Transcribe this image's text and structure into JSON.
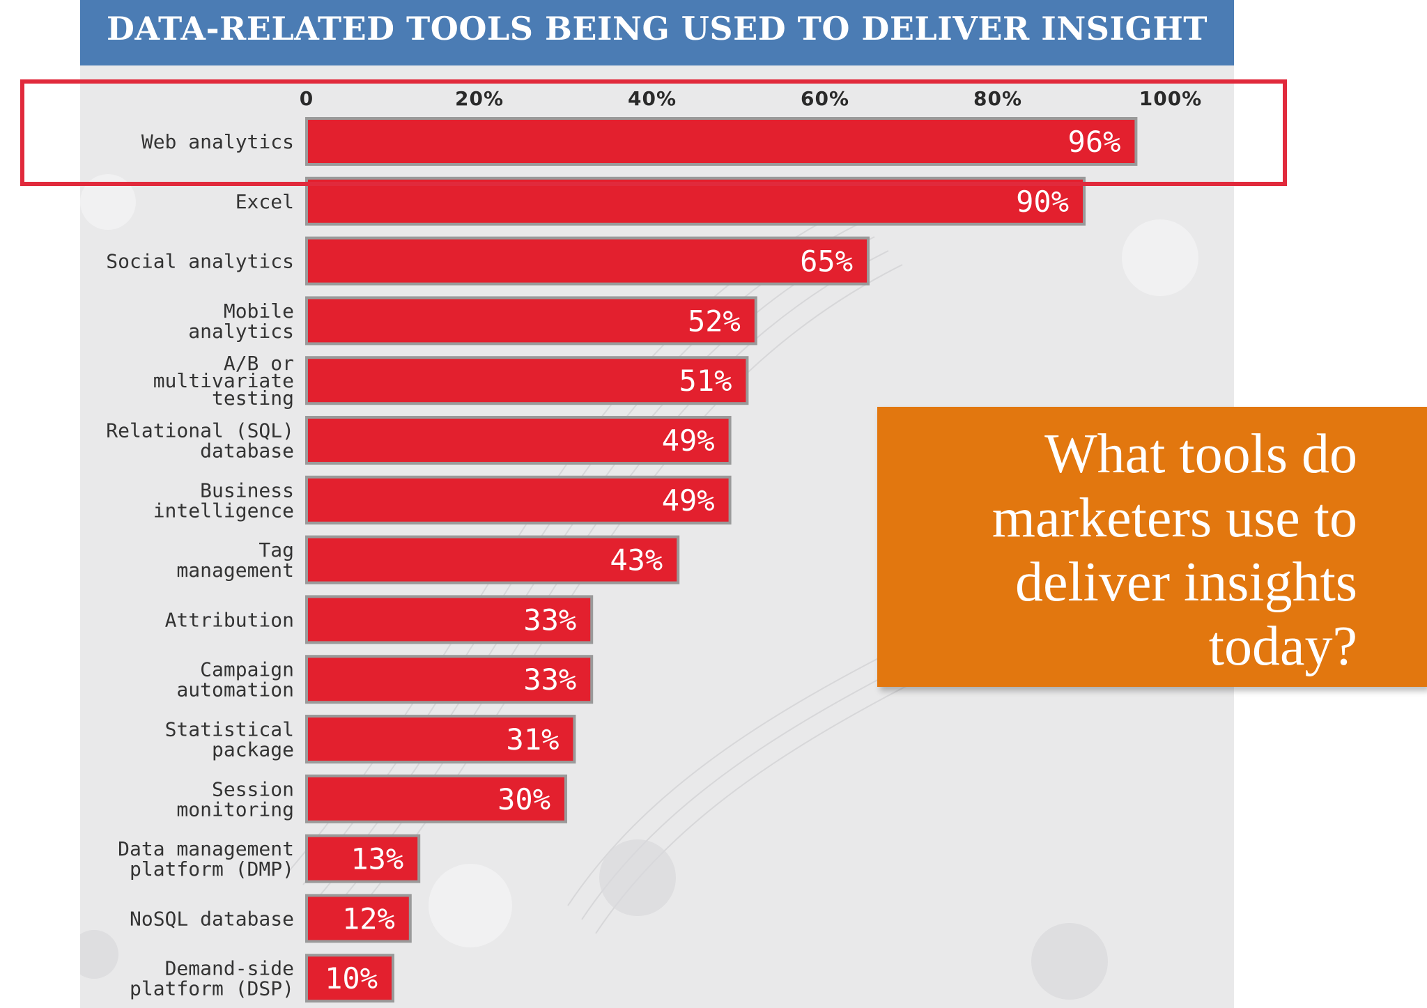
{
  "colors": {
    "header": "#4b7cb4",
    "bar": "#e3202e",
    "bar_border": "#9a9a9a",
    "highlight_box": "#e12a3c",
    "callout": "#e2770f",
    "panel": "#e9e9ea"
  },
  "callout": {
    "text": "What tools do marketers use to deliver insights today?"
  },
  "chart_data": {
    "type": "bar",
    "orientation": "horizontal",
    "title": "DATA-RELATED TOOLS BEING USED TO DELIVER INSIGHT",
    "xlim": [
      0,
      100
    ],
    "x_ticks": [
      "0",
      "20%",
      "40%",
      "60%",
      "80%",
      "100%"
    ],
    "x_tick_values": [
      0,
      20,
      40,
      60,
      80,
      100
    ],
    "x_axis_position": "top",
    "grid": false,
    "highlighted_category": "Web analytics",
    "categories": [
      "Web analytics",
      "Excel",
      "Social analytics",
      "Mobile analytics",
      "A/B or multivariate testing",
      "Relational (SQL) database",
      "Business intelligence",
      "Tag management",
      "Attribution",
      "Campaign automation",
      "Statistical package",
      "Session monitoring",
      "Data management platform (DMP)",
      "NoSQL database",
      "Demand-side platform (DSP)"
    ],
    "category_label_lines": [
      [
        "Web analytics"
      ],
      [
        "Excel"
      ],
      [
        "Social analytics"
      ],
      [
        "Mobile",
        "analytics"
      ],
      [
        "A/B or",
        "multivariate",
        "testing"
      ],
      [
        "Relational (SQL)",
        "database"
      ],
      [
        "Business",
        "intelligence"
      ],
      [
        "Tag",
        "management"
      ],
      [
        "Attribution"
      ],
      [
        "Campaign",
        "automation"
      ],
      [
        "Statistical",
        "package"
      ],
      [
        "Session",
        "monitoring"
      ],
      [
        "Data management",
        "platform (DMP)"
      ],
      [
        "NoSQL database"
      ],
      [
        "Demand-side",
        "platform (DSP)"
      ]
    ],
    "values": [
      96,
      90,
      65,
      52,
      51,
      49,
      49,
      43,
      33,
      33,
      31,
      30,
      13,
      12,
      10
    ],
    "value_labels": [
      "96%",
      "90%",
      "65%",
      "52%",
      "51%",
      "49%",
      "49%",
      "43%",
      "33%",
      "33%",
      "31%",
      "30%",
      "13%",
      "12%",
      "10%"
    ]
  }
}
